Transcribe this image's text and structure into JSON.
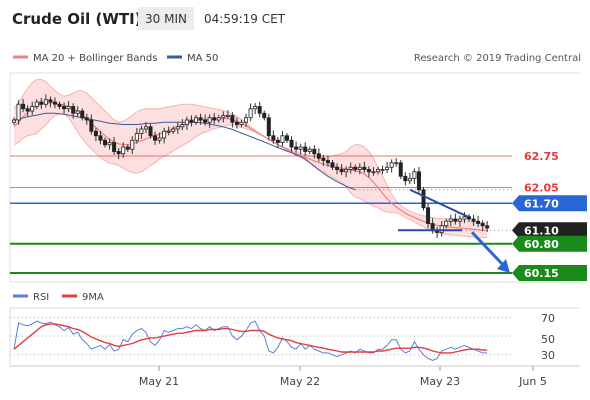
{
  "header": {
    "instrument": "Crude Oil (WTI)",
    "timeframe": "30 MIN",
    "time": "04:59:19 CET"
  },
  "legend": {
    "items": [
      {
        "label": "MA 20 + Bollinger Bands",
        "color": "#f08080"
      },
      {
        "label": "MA 50",
        "color": "#3a5a9a"
      }
    ],
    "research": "Research © 2019 Trading Central"
  },
  "levels": [
    {
      "label": "62.75",
      "value": 62.75,
      "color": "#e23c3c",
      "type": "text"
    },
    {
      "label": "62.05",
      "value": 62.05,
      "color": "#e23c3c",
      "type": "text"
    },
    {
      "label": "61.70",
      "value": 61.7,
      "color": "#2a66d9",
      "type": "box"
    },
    {
      "label": "61.10",
      "value": 61.1,
      "color": "#222222",
      "type": "box"
    },
    {
      "label": "60.80",
      "value": 60.8,
      "color": "#1a8a1a",
      "type": "box"
    },
    {
      "label": "60.15",
      "value": 60.15,
      "color": "#1a8a1a",
      "type": "box"
    }
  ],
  "x_labels": [
    "May 21",
    "May 22",
    "May 23",
    "Jun 5"
  ],
  "rsi": {
    "legend": [
      {
        "label": "RSI",
        "color": "#5b7fd6"
      },
      {
        "label": "9MA",
        "color": "#e23c3c"
      }
    ],
    "ticks": [
      "70",
      "50",
      "30"
    ],
    "tick_values": [
      70,
      50,
      30
    ]
  },
  "chart_data": {
    "type": "candlestick",
    "price_range": [
      59.95,
      64.55
    ],
    "rsi_range": [
      18,
      80
    ],
    "close": [
      63.55,
      63.9,
      63.8,
      63.75,
      63.85,
      63.95,
      63.9,
      64.0,
      63.95,
      63.9,
      63.85,
      63.8,
      63.85,
      63.7,
      63.75,
      63.6,
      63.55,
      63.3,
      63.2,
      63.1,
      63.0,
      63.05,
      62.85,
      62.8,
      62.95,
      62.9,
      63.1,
      63.25,
      63.35,
      63.4,
      63.2,
      63.1,
      63.15,
      63.3,
      63.3,
      63.35,
      63.4,
      63.45,
      63.55,
      63.5,
      63.6,
      63.55,
      63.5,
      63.6,
      63.55,
      63.6,
      63.65,
      63.65,
      63.5,
      63.45,
      63.5,
      63.6,
      63.8,
      63.85,
      63.7,
      63.6,
      63.2,
      63.1,
      63.05,
      63.2,
      63.1,
      62.95,
      62.9,
      62.95,
      62.85,
      62.9,
      62.8,
      62.7,
      62.65,
      62.6,
      62.5,
      62.45,
      62.4,
      62.45,
      62.5,
      62.45,
      62.5,
      62.45,
      62.4,
      62.4,
      62.45,
      62.45,
      62.5,
      62.6,
      62.6,
      62.3,
      62.2,
      62.25,
      62.4,
      62.0,
      61.6,
      61.25,
      61.1,
      61.05,
      61.2,
      61.3,
      61.35,
      61.3,
      61.35,
      61.4,
      61.35,
      61.3,
      61.25,
      61.2,
      61.15
    ],
    "ma20": [
      63.4,
      63.5,
      63.62,
      63.72,
      63.8,
      63.86,
      63.9,
      63.92,
      63.93,
      63.92,
      63.9,
      63.88,
      63.85,
      63.8,
      63.74,
      63.67,
      63.58,
      63.48,
      63.38,
      63.28,
      63.2,
      63.12,
      63.06,
      63.02,
      63.0,
      63.0,
      63.02,
      63.05,
      63.09,
      63.13,
      63.17,
      63.2,
      63.24,
      63.28,
      63.32,
      63.36,
      63.4,
      63.44,
      63.47,
      63.5,
      63.53,
      63.55,
      63.56,
      63.57,
      63.58,
      63.58,
      63.58,
      63.58,
      63.56,
      63.52,
      63.47,
      63.42,
      63.36,
      63.3,
      63.24,
      63.18,
      63.12,
      63.06,
      63.0,
      62.95,
      62.9,
      62.85,
      62.8,
      62.76,
      62.72,
      62.68,
      62.64,
      62.6,
      62.57,
      62.54,
      62.52,
      62.5,
      62.48,
      62.46,
      62.44,
      62.42,
      62.4,
      62.35,
      62.27,
      62.17,
      62.05,
      61.92,
      61.8,
      61.7,
      61.62,
      61.55,
      61.48,
      61.43,
      61.38,
      61.34,
      61.3,
      61.26,
      61.23,
      61.21,
      61.19,
      61.18,
      61.17,
      61.16,
      61.15,
      61.14,
      61.13,
      61.12,
      61.11,
      61.1,
      61.1
    ],
    "ma50": [
      63.55,
      63.57,
      63.6,
      63.62,
      63.64,
      63.66,
      63.68,
      63.7,
      63.7,
      63.7,
      63.69,
      63.68,
      63.66,
      63.64,
      63.62,
      63.6,
      63.58,
      63.56,
      63.54,
      63.52,
      63.5,
      63.48,
      63.47,
      63.46,
      63.45,
      63.45,
      63.45,
      63.45,
      63.46,
      63.47,
      63.48,
      63.48,
      63.49,
      63.5,
      63.5,
      63.5,
      63.5,
      63.5,
      63.5,
      63.5,
      63.5,
      63.49,
      63.48,
      63.46,
      63.44,
      63.42,
      63.4,
      63.37,
      63.34,
      63.3,
      63.26,
      63.22,
      63.18,
      63.14,
      63.1,
      63.06,
      63.02,
      62.98,
      62.94,
      62.9,
      62.86,
      62.82,
      62.78,
      62.74,
      62.68,
      62.6,
      62.52,
      62.44,
      62.37,
      62.3,
      62.24,
      62.18,
      62.13,
      62.08,
      62.04,
      62.0
    ],
    "bb_upper": [
      63.8,
      63.95,
      64.1,
      64.25,
      64.38,
      64.45,
      64.45,
      64.4,
      64.3,
      64.2,
      64.12,
      64.08,
      64.1,
      64.15,
      64.2,
      64.2,
      64.15,
      64.05,
      63.95,
      63.85,
      63.75,
      63.65,
      63.55,
      63.5,
      63.52,
      63.58,
      63.66,
      63.73,
      63.78,
      63.8,
      63.8,
      63.8,
      63.8,
      63.82,
      63.84,
      63.86,
      63.88,
      63.9,
      63.9,
      63.9,
      63.88,
      63.86,
      63.84,
      63.82,
      63.8,
      63.78,
      63.76,
      63.72,
      63.68,
      63.63,
      63.56,
      63.48,
      63.4,
      63.32,
      63.25,
      63.18,
      63.12,
      63.06,
      63.0,
      62.96,
      62.92,
      62.88,
      62.84,
      62.8,
      62.78,
      62.76,
      62.75,
      62.74,
      62.74,
      62.74,
      62.76,
      62.78,
      62.8,
      62.85,
      62.95,
      63.0,
      63.0,
      62.95,
      62.85,
      62.7,
      62.5,
      62.3,
      62.1,
      61.9,
      61.75,
      61.65,
      61.58,
      61.52,
      61.48,
      61.45,
      61.42,
      61.4,
      61.38,
      61.37,
      61.36,
      61.35,
      61.34,
      61.33,
      61.32,
      61.31,
      61.3,
      61.29,
      61.28,
      61.27,
      61.26
    ],
    "bb_lower": [
      63.0,
      63.05,
      63.15,
      63.2,
      63.22,
      63.25,
      63.35,
      63.44,
      63.56,
      63.64,
      63.68,
      63.68,
      63.6,
      63.45,
      63.28,
      63.14,
      63.01,
      62.91,
      62.81,
      62.71,
      62.65,
      62.59,
      62.57,
      62.54,
      62.48,
      62.42,
      62.38,
      62.37,
      62.4,
      62.46,
      62.54,
      62.6,
      62.68,
      62.74,
      62.8,
      62.86,
      62.92,
      62.98,
      63.04,
      63.1,
      63.18,
      63.24,
      63.28,
      63.32,
      63.36,
      63.38,
      63.4,
      63.44,
      63.44,
      63.41,
      63.38,
      63.36,
      63.32,
      63.28,
      63.23,
      63.18,
      63.12,
      63.06,
      63.0,
      62.94,
      62.88,
      62.82,
      62.76,
      62.72,
      62.66,
      62.6,
      62.53,
      62.46,
      62.4,
      62.34,
      62.28,
      62.22,
      62.16,
      62.07,
      61.93,
      61.84,
      61.8,
      61.75,
      61.69,
      61.64,
      61.6,
      61.54,
      61.5,
      61.5,
      61.49,
      61.45,
      61.38,
      61.34,
      61.28,
      61.23,
      61.18,
      61.12,
      61.08,
      61.05,
      61.02,
      61.01,
      61.0,
      60.99,
      60.98,
      60.97,
      60.96,
      60.95,
      60.94,
      60.93,
      60.94
    ],
    "rsi": [
      36,
      64,
      62,
      61,
      63,
      66,
      64,
      63,
      65,
      62,
      60,
      56,
      59,
      52,
      54,
      46,
      42,
      36,
      38,
      40,
      36,
      41,
      34,
      36,
      46,
      44,
      52,
      56,
      58,
      54,
      44,
      40,
      46,
      56,
      54,
      56,
      58,
      58,
      60,
      58,
      62,
      58,
      56,
      60,
      56,
      58,
      60,
      60,
      50,
      46,
      50,
      56,
      64,
      66,
      56,
      50,
      34,
      32,
      38,
      48,
      44,
      38,
      36,
      42,
      36,
      40,
      36,
      34,
      32,
      32,
      30,
      28,
      30,
      32,
      34,
      32,
      36,
      34,
      32,
      32,
      36,
      36,
      40,
      46,
      46,
      36,
      32,
      34,
      44,
      36,
      30,
      26,
      24,
      26,
      34,
      36,
      38,
      36,
      38,
      40,
      38,
      36,
      34,
      32,
      32
    ],
    "rsi_ma": [
      36,
      40,
      44,
      48,
      52,
      56,
      60,
      62,
      63,
      63,
      62,
      61,
      60,
      58,
      57,
      55,
      52,
      49,
      47,
      45,
      43,
      42,
      40,
      39,
      40,
      41,
      42,
      44,
      46,
      47,
      48,
      48,
      49,
      50,
      51,
      52,
      53,
      53,
      54,
      55,
      56,
      56,
      56,
      57,
      57,
      57,
      58,
      58,
      57,
      56,
      55,
      55,
      56,
      56,
      56,
      55,
      52,
      50,
      48,
      47,
      46,
      45,
      43,
      42,
      41,
      40,
      39,
      38,
      37,
      36,
      35,
      34,
      33,
      33,
      33,
      33,
      33,
      33,
      33,
      33,
      34,
      34,
      35,
      36,
      37,
      37,
      37,
      37,
      38,
      38,
      37,
      36,
      34,
      33,
      32,
      32,
      32,
      33,
      34,
      35,
      36,
      36,
      36,
      35,
      35
    ],
    "breakout_arrow": {
      "from": 61.1,
      "to": 60.15
    }
  }
}
